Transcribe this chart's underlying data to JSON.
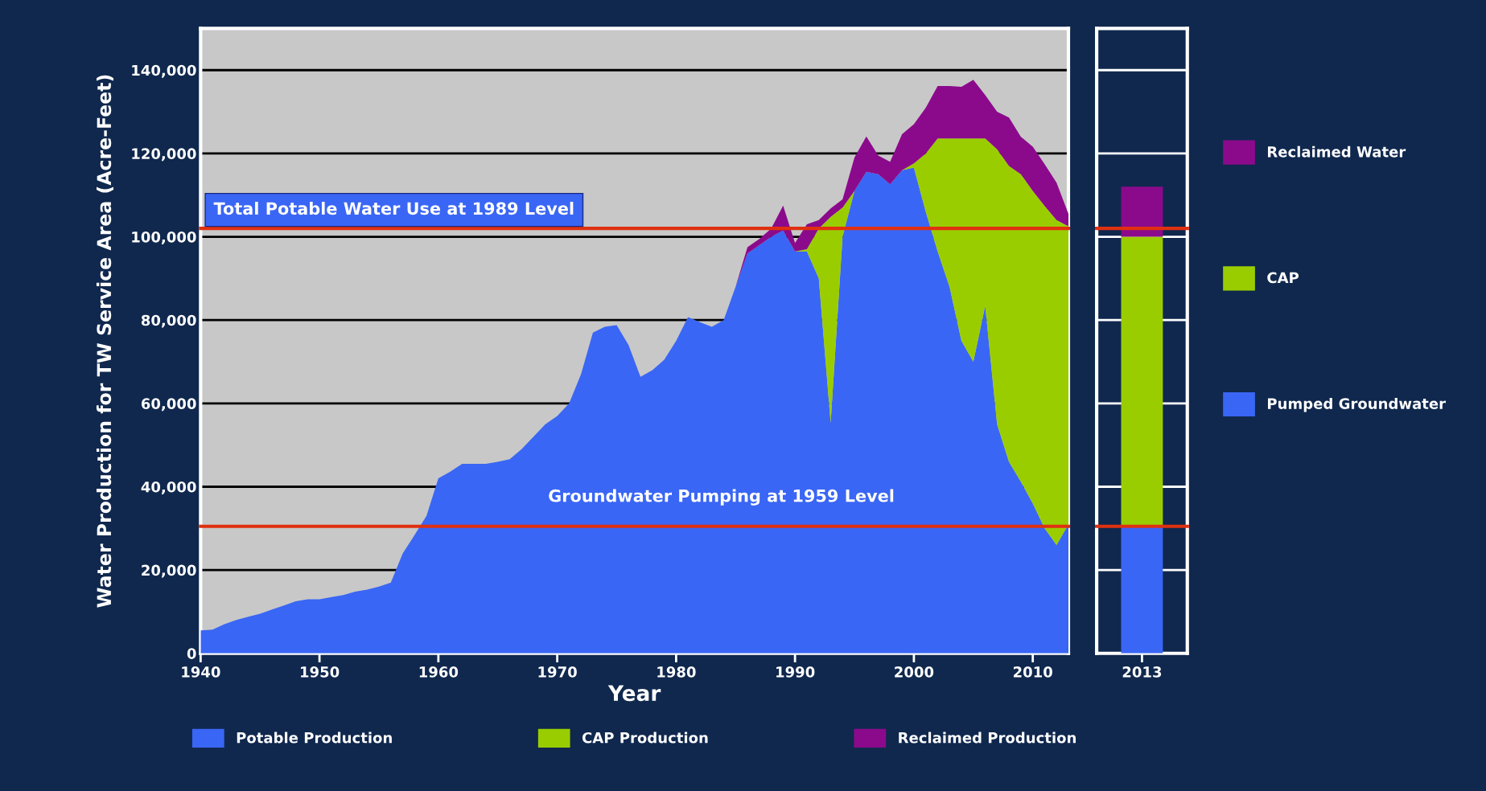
{
  "chart_data": [
    {
      "type": "area",
      "stacked": true,
      "xlabel": "Year",
      "ylabel": "Water Production for TW Service Area (Acre-Feet)",
      "x": [
        1940,
        1941,
        1942,
        1943,
        1944,
        1945,
        1946,
        1947,
        1948,
        1949,
        1950,
        1951,
        1952,
        1953,
        1954,
        1955,
        1956,
        1957,
        1958,
        1959,
        1960,
        1961,
        1962,
        1963,
        1964,
        1965,
        1966,
        1967,
        1968,
        1969,
        1970,
        1971,
        1972,
        1973,
        1974,
        1975,
        1976,
        1977,
        1978,
        1979,
        1980,
        1981,
        1982,
        1983,
        1984,
        1985,
        1986,
        1987,
        1988,
        1989,
        1990,
        1991,
        1992,
        1993,
        1994,
        1995,
        1996,
        1997,
        1998,
        1999,
        2000,
        2001,
        2002,
        2003,
        2004,
        2005,
        2006,
        2007,
        2008,
        2009,
        2010,
        2011,
        2012,
        2013
      ],
      "series": [
        {
          "name": "Potable Production",
          "color": "#3a66f5",
          "values": [
            5500,
            5700,
            7000,
            8000,
            8800,
            9500,
            10500,
            11500,
            12500,
            13000,
            13000,
            13500,
            14000,
            14800,
            15300,
            16000,
            17000,
            24000,
            28400,
            33000,
            42000,
            43600,
            45500,
            45500,
            45500,
            46000,
            46600,
            49000,
            52000,
            55000,
            57000,
            60000,
            67000,
            77000,
            78400,
            78800,
            74000,
            66400,
            68000,
            70500,
            75000,
            80700,
            79500,
            78400,
            80000,
            88000,
            96000,
            98000,
            100000,
            101500,
            96500,
            96500,
            90000,
            55300,
            100000,
            111000,
            115600,
            115000,
            112600,
            116000,
            116600,
            106000,
            96500,
            88000,
            75000,
            70000,
            83400,
            55000,
            46000,
            41200,
            36000,
            30000,
            26000,
            31000
          ]
        },
        {
          "name": "CAP Production",
          "color": "#9acd00",
          "values": [
            0,
            0,
            0,
            0,
            0,
            0,
            0,
            0,
            0,
            0,
            0,
            0,
            0,
            0,
            0,
            0,
            0,
            0,
            0,
            0,
            0,
            0,
            0,
            0,
            0,
            0,
            0,
            0,
            0,
            0,
            0,
            0,
            0,
            0,
            0,
            0,
            0,
            0,
            0,
            0,
            0,
            0,
            0,
            0,
            0,
            0,
            0,
            0,
            0,
            0,
            0,
            500,
            12000,
            49500,
            7000,
            0,
            0,
            0,
            0,
            0,
            1000,
            14000,
            27100,
            35600,
            48600,
            53600,
            40200,
            66000,
            71000,
            73800,
            75000,
            77400,
            78000,
            71500
          ]
        },
        {
          "name": "Reclaimed Production",
          "color": "#8b0a8b",
          "values": [
            0,
            0,
            0,
            0,
            0,
            0,
            0,
            0,
            0,
            0,
            0,
            0,
            0,
            0,
            0,
            0,
            0,
            0,
            0,
            0,
            0,
            0,
            0,
            0,
            0,
            0,
            0,
            0,
            0,
            0,
            0,
            0,
            0,
            0,
            0,
            0,
            0,
            0,
            0,
            0,
            0,
            0,
            0,
            0,
            0,
            0,
            1500,
            1500,
            2000,
            6000,
            2000,
            6000,
            2000,
            2000,
            2000,
            8000,
            8500,
            4500,
            5400,
            8600,
            9400,
            11000,
            12600,
            12600,
            12400,
            14100,
            10400,
            9000,
            11600,
            9000,
            10600,
            10000,
            9000,
            3000
          ]
        }
      ],
      "xlim": [
        1940,
        2013
      ],
      "xticks": [
        1940,
        1950,
        1960,
        1970,
        1980,
        1990,
        2000,
        2010
      ],
      "ylim": [
        0,
        150000
      ],
      "yticks": [
        {
          "value": 0,
          "label": "0"
        },
        {
          "value": 20000,
          "label": "20,000"
        },
        {
          "value": 40000,
          "label": "40,000"
        },
        {
          "value": 60000,
          "label": "60,000"
        },
        {
          "value": 80000,
          "label": "80,000"
        },
        {
          "value": 100000,
          "label": "100,000"
        },
        {
          "value": 120000,
          "label": "120,000"
        },
        {
          "value": 140000,
          "label": "140,000"
        }
      ],
      "ref_lines": [
        {
          "axis": "y",
          "value": 102000,
          "label": "Total Potable Water Use at 1989 Level",
          "color": "#e03010"
        },
        {
          "axis": "y",
          "value": 30500,
          "label": "Groundwater Pumping at 1959 Level",
          "color": "#e03010"
        }
      ],
      "grid": "y",
      "legend": "bottom"
    },
    {
      "type": "bar",
      "stacked": true,
      "categories": [
        "2013"
      ],
      "series": [
        {
          "name": "Pumped Groundwater",
          "color": "#3a66f5",
          "values": [
            30300
          ]
        },
        {
          "name": "CAP",
          "color": "#9acd00",
          "values": [
            69700
          ]
        },
        {
          "name": "Reclaimed Water",
          "color": "#8b0a8b",
          "values": [
            12000
          ]
        }
      ],
      "ylim": [
        0,
        150000
      ],
      "yticks": [
        20000,
        40000,
        60000,
        80000,
        100000,
        120000,
        140000
      ],
      "ref_lines": [
        {
          "axis": "y",
          "value": 102000,
          "color": "#e03010"
        },
        {
          "axis": "y",
          "value": 30500,
          "color": "#e03010"
        }
      ],
      "tick_labels": "x",
      "grid": "y",
      "legend": "right"
    }
  ]
}
